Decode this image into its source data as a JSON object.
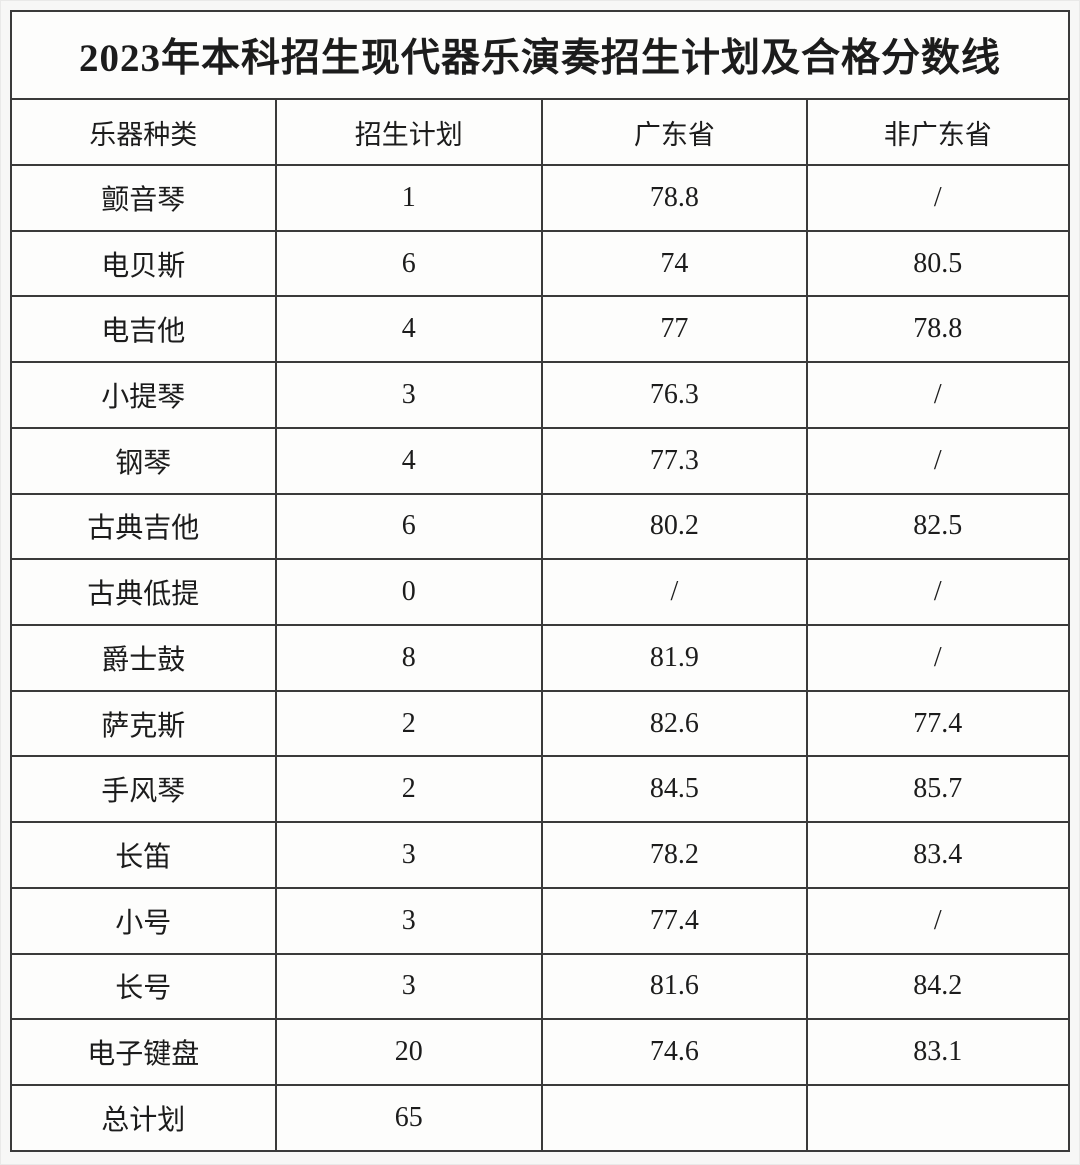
{
  "title": "2023年本科招生现代器乐演奏招生计划及合格分数线",
  "table": {
    "headers": [
      "乐器种类",
      "招生计划",
      "广东省",
      "非广东省"
    ],
    "rows": [
      {
        "instrument": "颤音琴",
        "plan": "1",
        "guangdong": "78.8",
        "non_guangdong": "/"
      },
      {
        "instrument": "电贝斯",
        "plan": "6",
        "guangdong": "74",
        "non_guangdong": "80.5"
      },
      {
        "instrument": "电吉他",
        "plan": "4",
        "guangdong": "77",
        "non_guangdong": "78.8"
      },
      {
        "instrument": "小提琴",
        "plan": "3",
        "guangdong": "76.3",
        "non_guangdong": "/"
      },
      {
        "instrument": "钢琴",
        "plan": "4",
        "guangdong": "77.3",
        "non_guangdong": "/"
      },
      {
        "instrument": "古典吉他",
        "plan": "6",
        "guangdong": "80.2",
        "non_guangdong": "82.5"
      },
      {
        "instrument": "古典低提",
        "plan": "0",
        "guangdong": "/",
        "non_guangdong": "/"
      },
      {
        "instrument": "爵士鼓",
        "plan": "8",
        "guangdong": "81.9",
        "non_guangdong": "/"
      },
      {
        "instrument": "萨克斯",
        "plan": "2",
        "guangdong": "82.6",
        "non_guangdong": "77.4"
      },
      {
        "instrument": "手风琴",
        "plan": "2",
        "guangdong": "84.5",
        "non_guangdong": "85.7"
      },
      {
        "instrument": "长笛",
        "plan": "3",
        "guangdong": "78.2",
        "non_guangdong": "83.4"
      },
      {
        "instrument": "小号",
        "plan": "3",
        "guangdong": "77.4",
        "non_guangdong": "/"
      },
      {
        "instrument": "长号",
        "plan": "3",
        "guangdong": "81.6",
        "non_guangdong": "84.2"
      },
      {
        "instrument": "电子键盘",
        "plan": "20",
        "guangdong": "74.6",
        "non_guangdong": "83.1"
      },
      {
        "instrument": "总计划",
        "plan": "65",
        "guangdong": "",
        "non_guangdong": ""
      }
    ]
  },
  "colors": {
    "text": "#1c1c1c",
    "border": "#3a3a3a",
    "cell_background": "#fdfdfc",
    "page_background": "#f6f6f5"
  }
}
